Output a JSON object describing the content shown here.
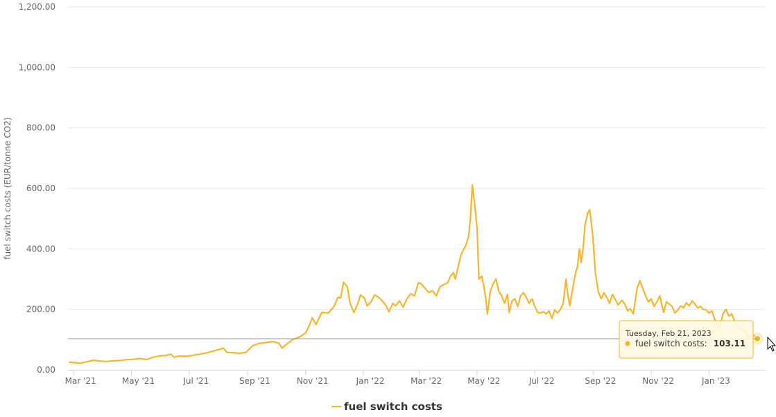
{
  "chart_data": {
    "type": "line",
    "ylabel": "fuel switch costs (EUR/tonne CO2)",
    "ylim": [
      0,
      1200
    ],
    "yticks": [
      "0.00",
      "200.00",
      "400.00",
      "600.00",
      "800.00",
      "1,000.00",
      "1,200.00"
    ],
    "xlim": [
      "2021-02-23",
      "2023-03-01"
    ],
    "xticks": [
      {
        "date": "2021-03-01",
        "label": "Mar '21"
      },
      {
        "date": "2021-05-01",
        "label": "May '21"
      },
      {
        "date": "2021-07-01",
        "label": "Jul '21"
      },
      {
        "date": "2021-09-01",
        "label": "Sep '21"
      },
      {
        "date": "2021-11-01",
        "label": "Nov '21"
      },
      {
        "date": "2022-01-01",
        "label": "Jan '22"
      },
      {
        "date": "2022-03-01",
        "label": "Mar '22"
      },
      {
        "date": "2022-05-01",
        "label": "May '22"
      },
      {
        "date": "2022-07-01",
        "label": "Jul '22"
      },
      {
        "date": "2022-09-01",
        "label": "Sep '22"
      },
      {
        "date": "2022-11-01",
        "label": "Nov '22"
      },
      {
        "date": "2023-01-01",
        "label": "Jan '23"
      }
    ],
    "grid": true,
    "legend_position": "bottom-center",
    "series": [
      {
        "name": "fuel switch costs",
        "color": "#f7b52c",
        "points": [
          [
            "2021-02-24",
            26
          ],
          [
            "2021-03-01",
            24
          ],
          [
            "2021-03-08",
            22
          ],
          [
            "2021-03-15",
            27
          ],
          [
            "2021-03-22",
            32
          ],
          [
            "2021-03-29",
            29
          ],
          [
            "2021-04-05",
            28
          ],
          [
            "2021-04-12",
            30
          ],
          [
            "2021-04-19",
            31
          ],
          [
            "2021-04-26",
            34
          ],
          [
            "2021-05-03",
            35
          ],
          [
            "2021-05-10",
            38
          ],
          [
            "2021-05-17",
            34
          ],
          [
            "2021-05-24",
            42
          ],
          [
            "2021-05-31",
            46
          ],
          [
            "2021-06-07",
            48
          ],
          [
            "2021-06-12",
            52
          ],
          [
            "2021-06-15",
            42
          ],
          [
            "2021-06-20",
            46
          ],
          [
            "2021-06-28",
            45
          ],
          [
            "2021-07-05",
            48
          ],
          [
            "2021-07-12",
            52
          ],
          [
            "2021-07-19",
            56
          ],
          [
            "2021-07-26",
            62
          ],
          [
            "2021-08-02",
            68
          ],
          [
            "2021-08-06",
            72
          ],
          [
            "2021-08-10",
            58
          ],
          [
            "2021-08-16",
            57
          ],
          [
            "2021-08-23",
            55
          ],
          [
            "2021-08-30",
            58
          ],
          [
            "2021-09-06",
            80
          ],
          [
            "2021-09-13",
            88
          ],
          [
            "2021-09-20",
            90
          ],
          [
            "2021-09-27",
            94
          ],
          [
            "2021-10-04",
            88
          ],
          [
            "2021-10-07",
            72
          ],
          [
            "2021-10-12",
            85
          ],
          [
            "2021-10-18",
            100
          ],
          [
            "2021-10-25",
            108
          ],
          [
            "2021-11-01",
            122
          ],
          [
            "2021-11-05",
            148
          ],
          [
            "2021-11-08",
            172
          ],
          [
            "2021-11-12",
            150
          ],
          [
            "2021-11-18",
            190
          ],
          [
            "2021-11-25",
            188
          ],
          [
            "2021-12-01",
            210
          ],
          [
            "2021-12-05",
            240
          ],
          [
            "2021-12-08",
            238
          ],
          [
            "2021-12-11",
            290
          ],
          [
            "2021-12-15",
            275
          ],
          [
            "2021-12-18",
            220
          ],
          [
            "2021-12-22",
            190
          ],
          [
            "2021-12-26",
            218
          ],
          [
            "2021-12-29",
            248
          ],
          [
            "2022-01-02",
            238
          ],
          [
            "2022-01-05",
            212
          ],
          [
            "2022-01-09",
            225
          ],
          [
            "2022-01-13",
            248
          ],
          [
            "2022-01-17",
            240
          ],
          [
            "2022-01-21",
            228
          ],
          [
            "2022-01-25",
            212
          ],
          [
            "2022-01-28",
            192
          ],
          [
            "2022-02-01",
            220
          ],
          [
            "2022-02-04",
            212
          ],
          [
            "2022-02-08",
            228
          ],
          [
            "2022-02-12",
            208
          ],
          [
            "2022-02-16",
            235
          ],
          [
            "2022-02-20",
            252
          ],
          [
            "2022-02-24",
            245
          ],
          [
            "2022-02-28",
            288
          ],
          [
            "2022-03-03",
            285
          ],
          [
            "2022-03-07",
            270
          ],
          [
            "2022-03-11",
            256
          ],
          [
            "2022-03-15",
            262
          ],
          [
            "2022-03-19",
            245
          ],
          [
            "2022-03-23",
            275
          ],
          [
            "2022-03-27",
            282
          ],
          [
            "2022-03-31",
            288
          ],
          [
            "2022-04-03",
            310
          ],
          [
            "2022-04-06",
            322
          ],
          [
            "2022-04-08",
            300
          ],
          [
            "2022-04-11",
            340
          ],
          [
            "2022-04-14",
            380
          ],
          [
            "2022-04-17",
            400
          ],
          [
            "2022-04-19",
            410
          ],
          [
            "2022-04-22",
            440
          ],
          [
            "2022-04-24",
            500
          ],
          [
            "2022-04-26",
            612
          ],
          [
            "2022-04-28",
            560
          ],
          [
            "2022-05-01",
            470
          ],
          [
            "2022-05-03",
            300
          ],
          [
            "2022-05-06",
            310
          ],
          [
            "2022-05-08",
            280
          ],
          [
            "2022-05-10",
            240
          ],
          [
            "2022-05-12",
            185
          ],
          [
            "2022-05-15",
            260
          ],
          [
            "2022-05-18",
            285
          ],
          [
            "2022-05-21",
            300
          ],
          [
            "2022-05-24",
            260
          ],
          [
            "2022-05-27",
            245
          ],
          [
            "2022-05-30",
            220
          ],
          [
            "2022-06-02",
            250
          ],
          [
            "2022-06-04",
            190
          ],
          [
            "2022-06-07",
            228
          ],
          [
            "2022-06-10",
            235
          ],
          [
            "2022-06-13",
            210
          ],
          [
            "2022-06-16",
            245
          ],
          [
            "2022-06-19",
            255
          ],
          [
            "2022-06-22",
            240
          ],
          [
            "2022-06-25",
            220
          ],
          [
            "2022-06-28",
            235
          ],
          [
            "2022-07-01",
            210
          ],
          [
            "2022-07-04",
            190
          ],
          [
            "2022-07-07",
            188
          ],
          [
            "2022-07-10",
            192
          ],
          [
            "2022-07-13",
            185
          ],
          [
            "2022-07-16",
            195
          ],
          [
            "2022-07-19",
            170
          ],
          [
            "2022-07-22",
            198
          ],
          [
            "2022-07-25",
            188
          ],
          [
            "2022-07-28",
            200
          ],
          [
            "2022-07-31",
            220
          ],
          [
            "2022-08-03",
            300
          ],
          [
            "2022-08-05",
            245
          ],
          [
            "2022-08-07",
            212
          ],
          [
            "2022-08-10",
            268
          ],
          [
            "2022-08-13",
            320
          ],
          [
            "2022-08-15",
            340
          ],
          [
            "2022-08-17",
            400
          ],
          [
            "2022-08-19",
            355
          ],
          [
            "2022-08-21",
            400
          ],
          [
            "2022-08-23",
            480
          ],
          [
            "2022-08-26",
            520
          ],
          [
            "2022-08-28",
            530
          ],
          [
            "2022-08-31",
            450
          ],
          [
            "2022-09-03",
            320
          ],
          [
            "2022-09-06",
            260
          ],
          [
            "2022-09-09",
            235
          ],
          [
            "2022-09-12",
            255
          ],
          [
            "2022-09-15",
            240
          ],
          [
            "2022-09-18",
            220
          ],
          [
            "2022-09-21",
            250
          ],
          [
            "2022-09-24",
            232
          ],
          [
            "2022-09-27",
            215
          ],
          [
            "2022-10-01",
            230
          ],
          [
            "2022-10-04",
            218
          ],
          [
            "2022-10-07",
            195
          ],
          [
            "2022-10-10",
            202
          ],
          [
            "2022-10-13",
            185
          ],
          [
            "2022-10-17",
            270
          ],
          [
            "2022-10-20",
            295
          ],
          [
            "2022-10-23",
            270
          ],
          [
            "2022-10-26",
            245
          ],
          [
            "2022-10-29",
            225
          ],
          [
            "2022-11-01",
            235
          ],
          [
            "2022-11-04",
            210
          ],
          [
            "2022-11-07",
            225
          ],
          [
            "2022-11-10",
            245
          ],
          [
            "2022-11-14",
            190
          ],
          [
            "2022-11-17",
            225
          ],
          [
            "2022-11-20",
            218
          ],
          [
            "2022-11-23",
            210
          ],
          [
            "2022-11-26",
            188
          ],
          [
            "2022-11-29",
            198
          ],
          [
            "2022-12-02",
            212
          ],
          [
            "2022-12-05",
            205
          ],
          [
            "2022-12-08",
            222
          ],
          [
            "2022-12-11",
            212
          ],
          [
            "2022-12-14",
            228
          ],
          [
            "2022-12-17",
            218
          ],
          [
            "2022-12-20",
            205
          ],
          [
            "2022-12-23",
            210
          ],
          [
            "2022-12-26",
            200
          ],
          [
            "2022-12-29",
            198
          ],
          [
            "2023-01-01",
            188
          ],
          [
            "2023-01-04",
            195
          ],
          [
            "2023-01-07",
            168
          ],
          [
            "2023-01-10",
            140
          ],
          [
            "2023-01-13",
            150
          ],
          [
            "2023-01-16",
            188
          ],
          [
            "2023-01-19",
            200
          ],
          [
            "2023-01-22",
            178
          ],
          [
            "2023-01-25",
            185
          ],
          [
            "2023-01-28",
            162
          ],
          [
            "2023-01-31",
            148
          ],
          [
            "2023-02-03",
            135
          ],
          [
            "2023-02-06",
            132
          ],
          [
            "2023-02-09",
            120
          ],
          [
            "2023-02-12",
            110
          ],
          [
            "2023-02-15",
            115
          ],
          [
            "2023-02-18",
            112
          ],
          [
            "2023-02-21",
            103.11
          ]
        ]
      }
    ],
    "tooltip": {
      "date": "Tuesday, Feb 21, 2023",
      "series_label": "fuel switch costs:",
      "value": "103.11"
    },
    "legend": [
      "fuel switch costs"
    ]
  }
}
